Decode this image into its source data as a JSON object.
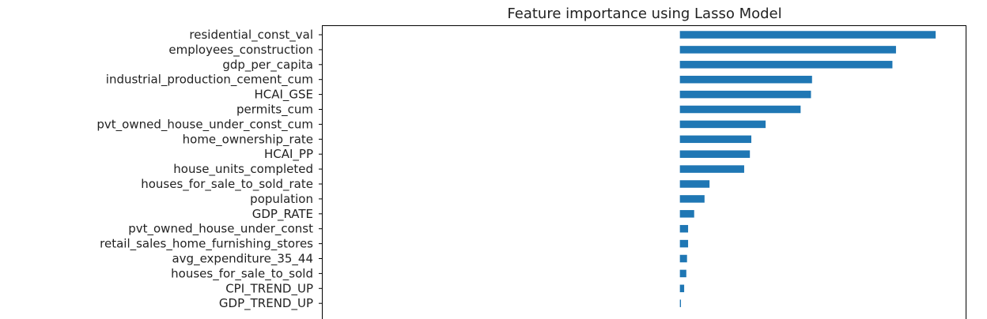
{
  "chart_data": {
    "type": "bar",
    "orientation": "horizontal",
    "title": "Feature importance using Lasso Model",
    "xlabel": "",
    "ylabel": "",
    "grid": false,
    "bar_color": "#1f77b4",
    "xlim": [
      -1.0,
      0.8
    ],
    "categories": [
      "residential_const_val",
      "employees_construction",
      "gdp_per_capita",
      "industrial_production_cement_cum",
      "HCAI_GSE",
      "permits_cum",
      "pvt_owned_house_under_const_cum",
      "home_ownership_rate",
      "HCAI_PP",
      "house_units_completed",
      "houses_for_sale_to_sold_rate",
      "population",
      "GDP_RATE",
      "pvt_owned_house_under_const",
      "retail_sales_home_furnishing_stores",
      "avg_expenditure_35_44",
      "houses_for_sale_to_sold",
      "CPI_TREND_UP",
      "GDP_TREND_UP"
    ],
    "values": [
      0.716,
      0.605,
      0.595,
      0.37,
      0.367,
      0.338,
      0.24,
      0.2,
      0.196,
      0.18,
      0.083,
      0.069,
      0.04,
      0.023,
      0.023,
      0.02,
      0.018,
      0.012,
      0.003
    ]
  }
}
